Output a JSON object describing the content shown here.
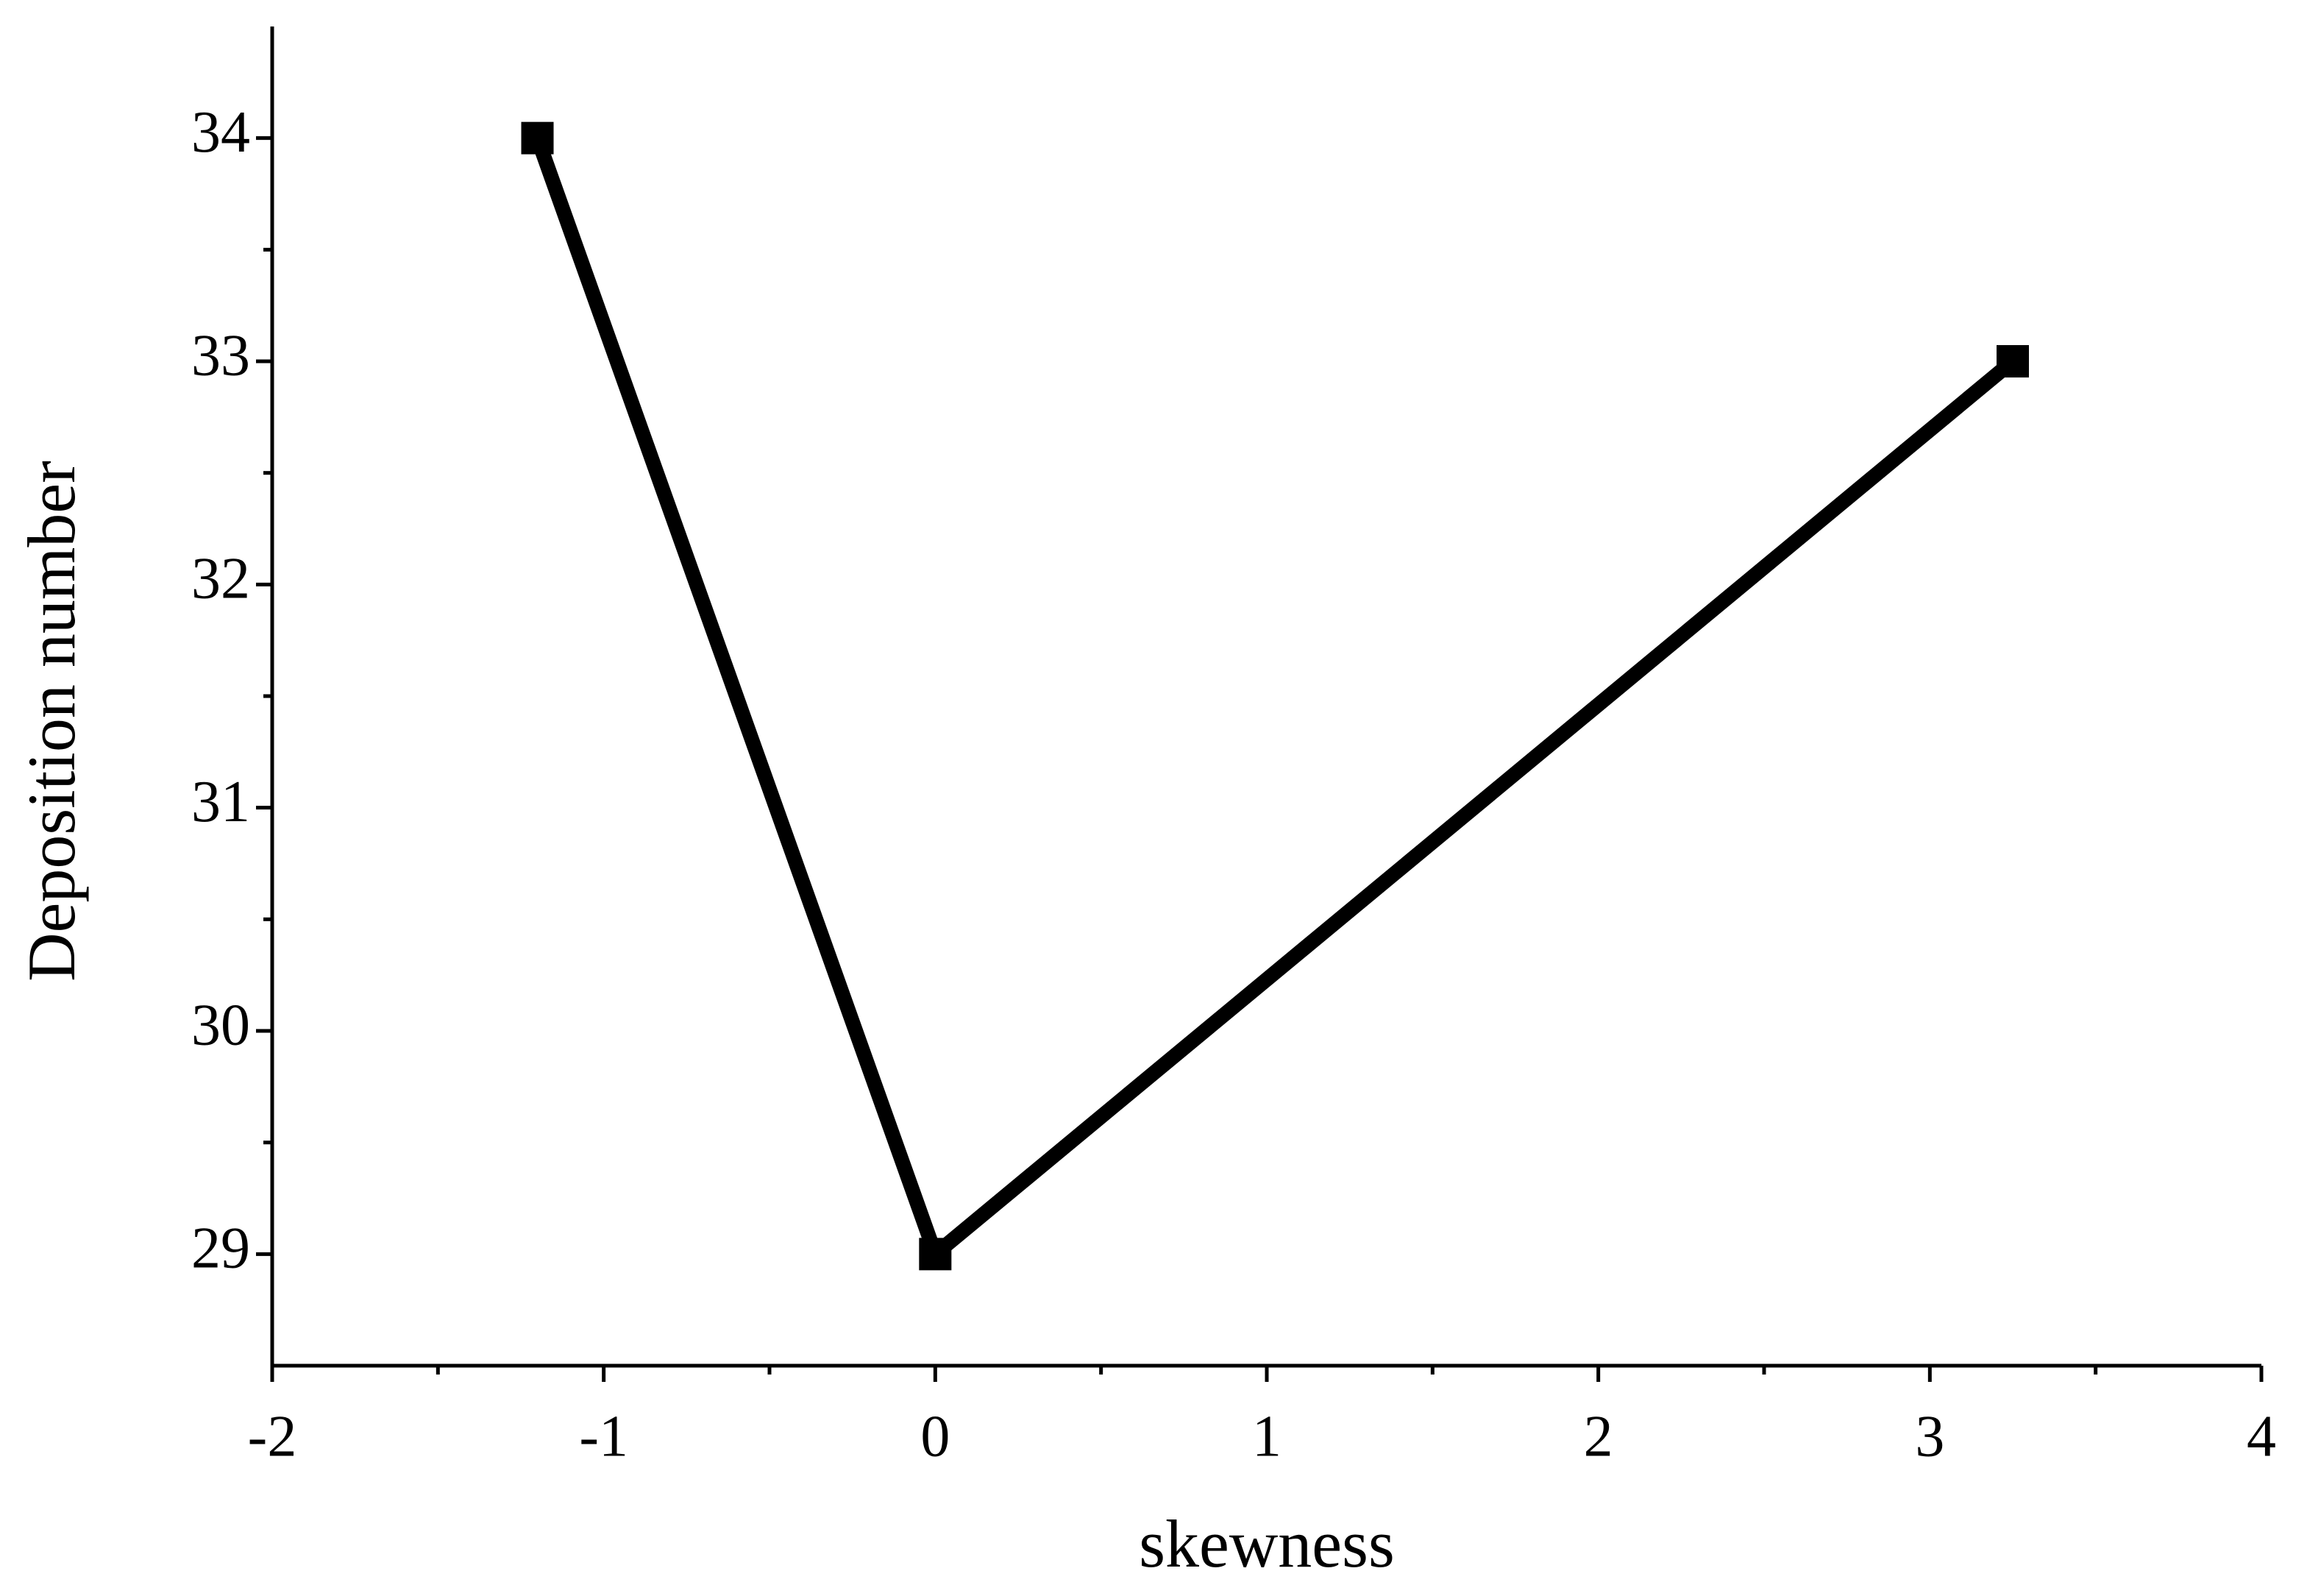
{
  "chart_data": {
    "type": "line",
    "xlabel": "skewness",
    "ylabel": "Deposition number",
    "x": [
      -1.2,
      0,
      3.25
    ],
    "series": [
      {
        "color": "#000000",
        "values": [
          34,
          29,
          33
        ]
      }
    ],
    "xlim": [
      -2,
      4
    ],
    "xticks": [
      -2,
      -1,
      0,
      1,
      2,
      3,
      4
    ],
    "ylim": [
      28.5,
      34.5
    ],
    "yticks": [
      29,
      30,
      31,
      32,
      33,
      34
    ],
    "grid": false
  }
}
